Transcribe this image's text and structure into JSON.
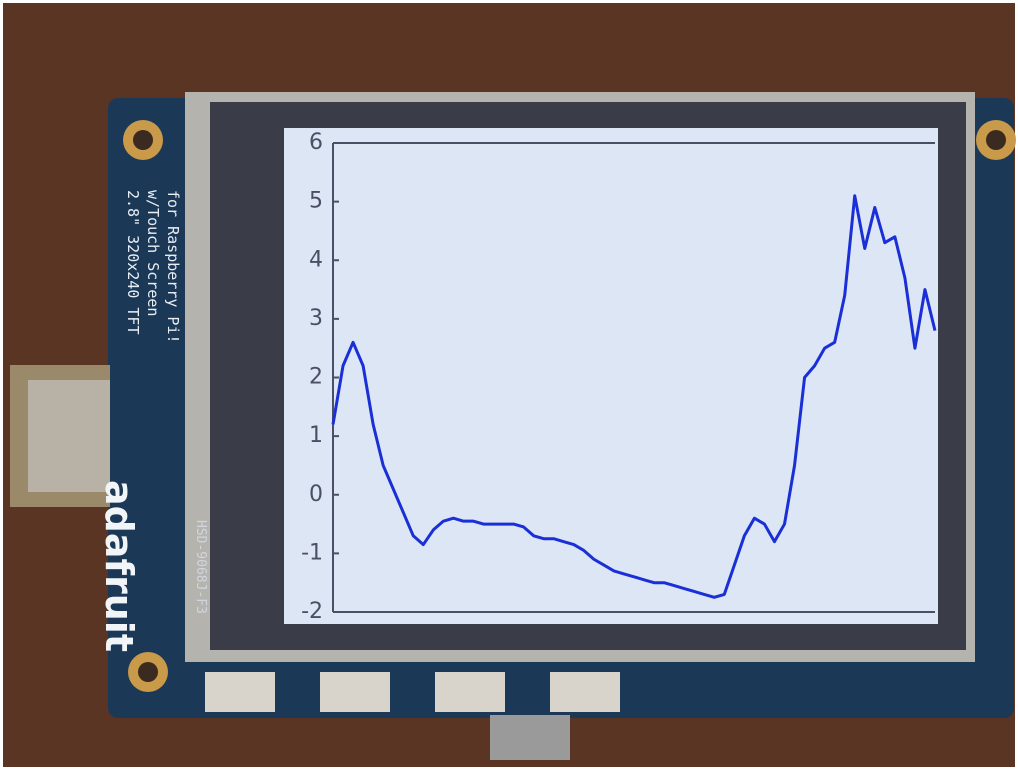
{
  "chart_data": {
    "type": "line",
    "values": [
      1.2,
      2.2,
      2.6,
      2.2,
      1.2,
      0.5,
      0.1,
      -0.3,
      -0.7,
      -0.85,
      -0.6,
      -0.45,
      -0.4,
      -0.45,
      -0.45,
      -0.5,
      -0.5,
      -0.5,
      -0.5,
      -0.55,
      -0.7,
      -0.75,
      -0.75,
      -0.8,
      -0.85,
      -0.95,
      -1.1,
      -1.2,
      -1.3,
      -1.35,
      -1.4,
      -1.45,
      -1.5,
      -1.5,
      -1.55,
      -1.6,
      -1.65,
      -1.7,
      -1.75,
      -1.7,
      -1.2,
      -0.7,
      -0.4,
      -0.5,
      -0.8,
      -0.5,
      0.5,
      2.0,
      2.2,
      2.5,
      2.6,
      3.4,
      5.1,
      4.2,
      4.9,
      4.3,
      4.4,
      3.7,
      2.5,
      3.5,
      2.8
    ],
    "color": "#1a2fd6",
    "ylim": [
      -2,
      6
    ],
    "yticks": [
      -2,
      -1,
      0,
      1,
      2,
      3,
      4,
      5,
      6
    ]
  },
  "board": {
    "label_lines": [
      "2.8\" 320x240 TFT",
      "w/Touch Screen",
      "for Raspberry Pi!"
    ],
    "brand": "adafruit",
    "panel_code": "HSD-9068J-F3"
  }
}
